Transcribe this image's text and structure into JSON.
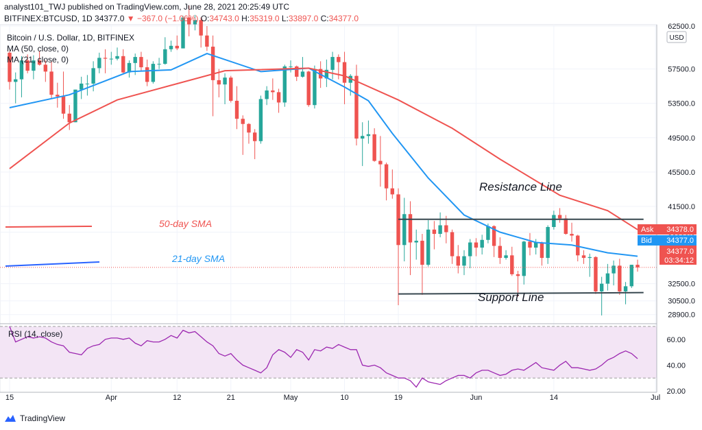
{
  "header": {
    "publisher": "analyst101_TWJ published on TradingView.com, June 28, 2021 20:25:49 UTC",
    "symbol": "BITFINEX:BTCUSD, 1D",
    "last": "34377.0",
    "change": "▼ −367.0 (−1.06%)",
    "open_label": "O:",
    "open": "34743.0",
    "high_label": "H:",
    "high": "35319.0",
    "low_label": "L:",
    "low": "33897.0",
    "close_label": "C:",
    "close": "34377.0"
  },
  "legend": {
    "title": "Bitcoin / U.S. Dollar, 1D, BITFINEX",
    "ma50": "MA (50, close, 0)",
    "ma21": "MA (21, close, 0)",
    "rsi": "RSI (14, close)"
  },
  "annotations": {
    "resistance": "Resistance Line",
    "support": "Support Line",
    "sma50": "50-day SMA",
    "sma21": "21-day SMA"
  },
  "price_tags": {
    "ask_label": "Ask",
    "ask": "34378.0",
    "bid_label": "Bid",
    "bid": "34377.0",
    "last": "34377.0",
    "countdown": "03:34:12",
    "currency": "USD"
  },
  "footer": {
    "brand": "TradingView"
  },
  "colors": {
    "up": "#26a69a",
    "down": "#ef5350",
    "ma50": "#ef5350",
    "ma21": "#2196f3",
    "rsi": "#9c27b0",
    "rsi_band": "#f3e5f5",
    "lines": "#37474f",
    "text": "#131722"
  },
  "chart_data": {
    "type": "candlestick",
    "price_axis": {
      "min": 28000,
      "max": 62500,
      "ticks": [
        "62500.0",
        "57500.0",
        "53500.0",
        "49500.0",
        "45500.0",
        "41500.0",
        "38500.0",
        "32500.0",
        "30500.0",
        "28900.0"
      ]
    },
    "time_axis": {
      "labels": [
        "15",
        "Apr",
        "12",
        "21",
        "May",
        "10",
        "19",
        "Jun",
        "14",
        "Jul"
      ],
      "dates": [
        "2021-03-15",
        "2021-04-01",
        "2021-04-12",
        "2021-04-21",
        "2021-05-01",
        "2021-05-10",
        "2021-05-19",
        "2021-06-01",
        "2021-06-14",
        "2021-07-01"
      ]
    },
    "candles": [
      [
        "2021-03-15",
        59400,
        59600,
        55100,
        56000
      ],
      [
        "2021-03-16",
        56000,
        57100,
        53500,
        56300
      ],
      [
        "2021-03-17",
        56300,
        59000,
        54200,
        58500
      ],
      [
        "2021-03-18",
        58500,
        59200,
        57000,
        57300
      ],
      [
        "2021-03-19",
        57300,
        59100,
        56300,
        58500
      ],
      [
        "2021-03-20",
        58500,
        59600,
        57900,
        58000
      ],
      [
        "2021-03-21",
        58000,
        58500,
        56000,
        57200
      ],
      [
        "2021-03-22",
        57200,
        58400,
        54000,
        54500
      ],
      [
        "2021-03-23",
        54500,
        55900,
        53000,
        54300
      ],
      [
        "2021-03-24",
        54300,
        57200,
        51700,
        52300
      ],
      [
        "2021-03-25",
        52300,
        53300,
        50400,
        51300
      ],
      [
        "2021-03-26",
        51300,
        55100,
        51300,
        55100
      ],
      [
        "2021-03-27",
        55100,
        56600,
        54000,
        55800
      ],
      [
        "2021-03-28",
        55800,
        56800,
        54400,
        55800
      ],
      [
        "2021-03-29",
        55800,
        58400,
        54900,
        57600
      ],
      [
        "2021-03-30",
        57600,
        59400,
        57000,
        58800
      ],
      [
        "2021-03-31",
        58800,
        59800,
        57000,
        58700
      ],
      [
        "2021-04-01",
        58700,
        59500,
        58000,
        58700
      ],
      [
        "2021-04-02",
        58700,
        60000,
        58500,
        59000
      ],
      [
        "2021-04-03",
        59000,
        59800,
        57000,
        57100
      ],
      [
        "2021-04-04",
        57100,
        58500,
        56500,
        58200
      ],
      [
        "2021-04-05",
        58200,
        59300,
        56800,
        58900
      ],
      [
        "2021-04-06",
        58900,
        59500,
        57300,
        57700
      ],
      [
        "2021-04-07",
        57700,
        58600,
        55500,
        56000
      ],
      [
        "2021-04-08",
        56000,
        58400,
        55800,
        58100
      ],
      [
        "2021-04-09",
        58100,
        58800,
        57500,
        58100
      ],
      [
        "2021-04-10",
        58100,
        61200,
        58000,
        59800
      ],
      [
        "2021-04-11",
        59800,
        60800,
        59500,
        60200
      ],
      [
        "2021-04-12",
        60200,
        61400,
        59700,
        59900
      ],
      [
        "2021-04-13",
        59900,
        63700,
        59900,
        63500
      ],
      [
        "2021-04-14",
        63500,
        64900,
        61300,
        62700
      ],
      [
        "2021-04-15",
        62700,
        63800,
        62000,
        63200
      ],
      [
        "2021-04-16",
        63200,
        63500,
        60000,
        61400
      ],
      [
        "2021-04-17",
        61400,
        62500,
        59600,
        60100
      ],
      [
        "2021-04-18",
        60100,
        61400,
        52000,
        56200
      ],
      [
        "2021-04-19",
        56200,
        57500,
        54200,
        55700
      ],
      [
        "2021-04-20",
        55700,
        57000,
        53400,
        56500
      ],
      [
        "2021-04-21",
        56500,
        56700,
        53600,
        53800
      ],
      [
        "2021-04-22",
        53800,
        55500,
        50500,
        51700
      ],
      [
        "2021-04-23",
        51700,
        52100,
        47500,
        51100
      ],
      [
        "2021-04-24",
        51100,
        51200,
        48800,
        50100
      ],
      [
        "2021-04-25",
        50100,
        50500,
        47000,
        49100
      ],
      [
        "2021-04-26",
        49100,
        54400,
        48800,
        54000
      ],
      [
        "2021-04-27",
        54000,
        55500,
        53300,
        55000
      ],
      [
        "2021-04-28",
        55000,
        56400,
        53900,
        54800
      ],
      [
        "2021-04-29",
        54800,
        55200,
        52400,
        53600
      ],
      [
        "2021-04-30",
        53600,
        58000,
        53100,
        57800
      ],
      [
        "2021-05-01",
        57800,
        58500,
        57100,
        57800
      ],
      [
        "2021-05-02",
        57800,
        57900,
        56100,
        56600
      ],
      [
        "2021-05-03",
        56600,
        58900,
        56500,
        57200
      ],
      [
        "2021-05-04",
        57200,
        57300,
        53100,
        53300
      ],
      [
        "2021-05-05",
        53300,
        57900,
        52900,
        57500
      ],
      [
        "2021-05-06",
        57500,
        58400,
        55300,
        56400
      ],
      [
        "2021-05-07",
        56400,
        58600,
        55400,
        57400
      ],
      [
        "2021-05-08",
        57400,
        59500,
        56300,
        58900
      ],
      [
        "2021-05-09",
        58900,
        59200,
        56300,
        58300
      ],
      [
        "2021-05-10",
        58300,
        59500,
        53400,
        55900
      ],
      [
        "2021-05-11",
        55900,
        56900,
        54400,
        56700
      ],
      [
        "2021-05-12",
        56700,
        58000,
        48600,
        49400
      ],
      [
        "2021-05-13",
        49400,
        51300,
        46200,
        49700
      ],
      [
        "2021-05-14",
        49700,
        51500,
        48800,
        49900
      ],
      [
        "2021-05-15",
        49900,
        50600,
        46700,
        46800
      ],
      [
        "2021-05-16",
        46800,
        49700,
        43800,
        46400
      ],
      [
        "2021-05-17",
        46400,
        46600,
        42200,
        43600
      ],
      [
        "2021-05-18",
        43600,
        45800,
        42400,
        42900
      ],
      [
        "2021-05-19",
        42900,
        43600,
        30000,
        37000
      ],
      [
        "2021-05-20",
        37000,
        42500,
        35100,
        40600
      ],
      [
        "2021-05-21",
        40600,
        42100,
        33500,
        37300
      ],
      [
        "2021-05-22",
        37300,
        38800,
        35300,
        37500
      ],
      [
        "2021-05-23",
        37500,
        38300,
        31200,
        34700
      ],
      [
        "2021-05-24",
        34700,
        39900,
        34500,
        38800
      ],
      [
        "2021-05-25",
        38800,
        39800,
        36500,
        38300
      ],
      [
        "2021-05-26",
        38300,
        40800,
        37900,
        39300
      ],
      [
        "2021-05-27",
        39300,
        40400,
        37200,
        38500
      ],
      [
        "2021-05-28",
        38500,
        38800,
        34800,
        35700
      ],
      [
        "2021-05-29",
        35700,
        37000,
        33700,
        34600
      ],
      [
        "2021-05-30",
        34600,
        36400,
        33500,
        35700
      ],
      [
        "2021-05-31",
        35700,
        37700,
        34300,
        37300
      ],
      [
        "2021-06-01",
        37300,
        37800,
        35700,
        36700
      ],
      [
        "2021-06-02",
        36700,
        38200,
        35900,
        37600
      ],
      [
        "2021-06-03",
        37600,
        39500,
        37200,
        39200
      ],
      [
        "2021-06-04",
        39200,
        39300,
        35600,
        36900
      ],
      [
        "2021-06-05",
        36900,
        37900,
        34800,
        35500
      ],
      [
        "2021-06-06",
        35500,
        36400,
        35300,
        35800
      ],
      [
        "2021-06-07",
        35800,
        36800,
        33400,
        33600
      ],
      [
        "2021-06-08",
        33600,
        34000,
        31000,
        33400
      ],
      [
        "2021-06-09",
        33400,
        37500,
        32400,
        37400
      ],
      [
        "2021-06-10",
        37400,
        38400,
        35800,
        36700
      ],
      [
        "2021-06-11",
        36700,
        37700,
        35900,
        37300
      ],
      [
        "2021-06-12",
        37300,
        37400,
        34600,
        35500
      ],
      [
        "2021-06-13",
        35500,
        39300,
        34800,
        39100
      ],
      [
        "2021-06-14",
        39100,
        41000,
        38800,
        40500
      ],
      [
        "2021-06-15",
        40500,
        41300,
        39600,
        40100
      ],
      [
        "2021-06-16",
        40100,
        40500,
        38200,
        38300
      ],
      [
        "2021-06-17",
        38300,
        39600,
        37400,
        38100
      ],
      [
        "2021-06-18",
        38100,
        38200,
        35100,
        35800
      ],
      [
        "2021-06-19",
        35800,
        36400,
        34800,
        35500
      ],
      [
        "2021-06-20",
        35500,
        36000,
        33300,
        35600
      ],
      [
        "2021-06-21",
        35600,
        35700,
        31300,
        31600
      ],
      [
        "2021-06-22",
        31600,
        33300,
        28800,
        32500
      ],
      [
        "2021-06-23",
        32500,
        34800,
        31700,
        33700
      ],
      [
        "2021-06-24",
        33700,
        35200,
        32300,
        34600
      ],
      [
        "2021-06-25",
        34600,
        35400,
        31200,
        31600
      ],
      [
        "2021-06-26",
        31600,
        32700,
        30100,
        32200
      ],
      [
        "2021-06-27",
        32200,
        34700,
        32000,
        34700
      ],
      [
        "2021-06-28",
        34700,
        35300,
        33900,
        34400
      ]
    ],
    "ma21": [
      [
        0,
        53000
      ],
      [
        10,
        54500
      ],
      [
        20,
        57200
      ],
      [
        27,
        57400
      ],
      [
        33,
        59300
      ],
      [
        42,
        57200
      ],
      [
        50,
        57600
      ],
      [
        56,
        55400
      ],
      [
        60,
        53800
      ],
      [
        64,
        50000
      ],
      [
        70,
        44800
      ],
      [
        76,
        40500
      ],
      [
        82,
        38500
      ],
      [
        88,
        37300
      ],
      [
        94,
        37000
      ],
      [
        100,
        36100
      ],
      [
        105,
        35700
      ]
    ],
    "ma50": [
      [
        0,
        45900
      ],
      [
        10,
        51200
      ],
      [
        18,
        53900
      ],
      [
        27,
        55600
      ],
      [
        36,
        57300
      ],
      [
        50,
        57600
      ],
      [
        56,
        56700
      ],
      [
        65,
        53900
      ],
      [
        74,
        50600
      ],
      [
        82,
        47000
      ],
      [
        92,
        42800
      ],
      [
        100,
        41000
      ],
      [
        105,
        38800
      ]
    ],
    "resistance": 40000,
    "support": 31300,
    "rsi": {
      "min": 20,
      "max": 70,
      "overbought": 70,
      "oversold": 30,
      "ticks": [
        "60.00",
        "40.00",
        "20.00"
      ],
      "values": [
        70,
        58,
        60,
        62,
        61,
        62,
        61,
        58,
        56,
        55,
        50,
        49,
        48,
        53,
        55,
        56,
        60,
        61,
        61,
        60,
        61,
        57,
        55,
        59,
        58,
        58,
        60,
        63,
        61,
        67,
        65,
        66,
        62,
        58,
        55,
        49,
        47,
        49,
        44,
        40,
        38,
        36,
        34,
        38,
        48,
        52,
        50,
        46,
        52,
        50,
        44,
        52,
        51,
        54,
        53,
        56,
        54,
        52,
        52,
        40,
        39,
        40,
        38,
        34,
        32,
        30,
        30,
        28,
        23,
        30,
        27,
        26,
        25,
        28,
        30,
        32,
        32,
        30,
        34,
        36,
        36,
        34,
        32,
        33,
        36,
        37,
        36,
        39,
        42,
        38,
        37,
        36,
        40,
        43,
        38,
        38,
        37,
        36,
        37,
        40,
        44,
        46,
        49,
        51,
        49,
        45
      ]
    }
  }
}
